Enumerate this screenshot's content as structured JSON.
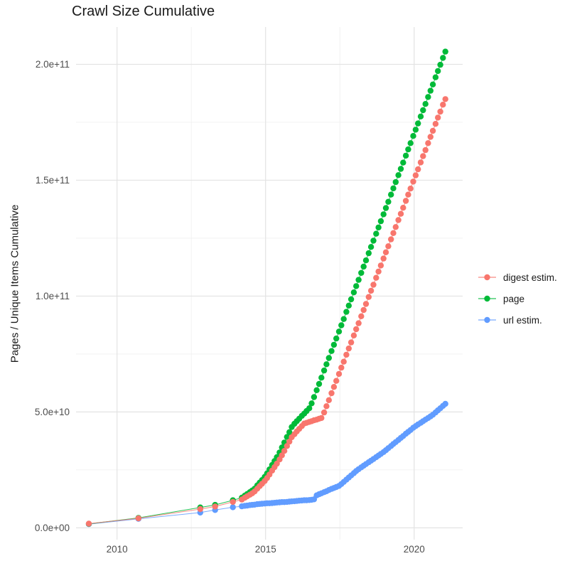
{
  "title": "Crawl Size Cumulative",
  "axes": {
    "y_label": "Pages / Unique Items Cumulative",
    "x_ticks": [
      {
        "label": "2010",
        "value": 2010
      },
      {
        "label": "2015",
        "value": 2015
      },
      {
        "label": "2020",
        "value": 2020
      }
    ],
    "y_ticks": [
      {
        "label": "0.0e+00",
        "value": 0
      },
      {
        "label": "5.0e+10",
        "value": 50
      },
      {
        "label": "1.0e+11",
        "value": 100
      },
      {
        "label": "1.5e+11",
        "value": 150
      },
      {
        "label": "2.0e+11",
        "value": 200
      }
    ],
    "x_minor": [
      2012.5,
      2017.5
    ],
    "y_minor": [
      25,
      75,
      125,
      175
    ]
  },
  "style": {
    "background": "#FFFFFF",
    "grid_major_color": "#E3E3E3",
    "grid_minor_color": "#EFEFEF",
    "tick_label_color": "#4D4D4D",
    "text_color": "#1A1A1A"
  },
  "chart_data": {
    "type": "scatter",
    "title": "Crawl Size Cumulative",
    "xlabel": "",
    "ylabel": "Pages / Unique Items Cumulative",
    "x_unit": "year (decimal)",
    "y_unit": "items cumulative, in billions (1e9)",
    "xlim": [
      2008.62,
      2021.68
    ],
    "ylim": [
      -5.1,
      216.1
    ],
    "grid": true,
    "legend_position": "right",
    "markers_with_line": true,
    "x": [
      2009.05,
      2010.72,
      2012.8,
      2013.3,
      2013.9,
      2014.2,
      2014.3,
      2014.38,
      2014.47,
      2014.55,
      2014.63,
      2014.72,
      2014.8,
      2014.88,
      2014.97,
      2015.05,
      2015.13,
      2015.22,
      2015.3,
      2015.38,
      2015.47,
      2015.55,
      2015.63,
      2015.72,
      2015.8,
      2015.88,
      2015.97,
      2016.05,
      2016.13,
      2016.22,
      2016.3,
      2016.38,
      2016.47,
      2016.55,
      2016.63,
      2016.72,
      2016.8,
      2016.88,
      2016.97,
      2017.05,
      2017.13,
      2017.22,
      2017.3,
      2017.38,
      2017.47,
      2017.55,
      2017.63,
      2017.72,
      2017.8,
      2017.88,
      2017.97,
      2018.05,
      2018.13,
      2018.22,
      2018.3,
      2018.38,
      2018.47,
      2018.55,
      2018.63,
      2018.72,
      2018.8,
      2018.88,
      2018.97,
      2019.05,
      2019.13,
      2019.22,
      2019.3,
      2019.38,
      2019.47,
      2019.55,
      2019.63,
      2019.72,
      2019.8,
      2019.88,
      2019.97,
      2020.05,
      2020.13,
      2020.22,
      2020.3,
      2020.38,
      2020.47,
      2020.55,
      2020.63,
      2020.72,
      2020.8,
      2020.88,
      2020.97,
      2021.05
    ],
    "series": [
      {
        "name": "digest estim.",
        "color": "#F8766D",
        "values": [
          1.8,
          4.1,
          8.1,
          9.2,
          11.2,
          12.2,
          13.0,
          13.6,
          14.3,
          14.9,
          15.7,
          16.9,
          18.0,
          19.0,
          20.2,
          21.5,
          23.0,
          24.7,
          26.2,
          27.7,
          29.5,
          31.3,
          33.2,
          35.3,
          37.2,
          39.1,
          40.4,
          41.6,
          42.7,
          43.9,
          45.0,
          45.3,
          45.7,
          46.0,
          46.4,
          46.7,
          47.1,
          47.4,
          49.8,
          52.5,
          55.1,
          58.1,
          60.8,
          63.4,
          66.4,
          69.1,
          71.7,
          74.7,
          77.4,
          80.0,
          83.0,
          85.7,
          88.3,
          91.3,
          94.0,
          96.6,
          99.6,
          102.3,
          104.9,
          107.9,
          110.6,
          113.2,
          116.2,
          118.9,
          121.5,
          124.5,
          127.2,
          129.8,
          132.8,
          135.5,
          138.1,
          141.1,
          143.8,
          146.4,
          149.4,
          152.1,
          154.7,
          157.7,
          160.4,
          163.0,
          166.0,
          168.7,
          171.3,
          174.3,
          177.0,
          179.6,
          182.6,
          185.0
        ]
      },
      {
        "name": "page",
        "color": "#00BA38",
        "values": [
          1.7,
          4.3,
          8.8,
          9.9,
          11.9,
          13.0,
          13.9,
          14.6,
          15.4,
          16.1,
          16.9,
          18.3,
          19.5,
          20.6,
          22.0,
          23.5,
          25.2,
          27.1,
          28.8,
          30.5,
          32.5,
          34.7,
          36.8,
          39.2,
          41.3,
          43.5,
          44.9,
          46.0,
          47.1,
          48.3,
          49.3,
          50.4,
          51.6,
          53.7,
          56.4,
          59.4,
          62.1,
          64.8,
          67.9,
          70.6,
          73.3,
          76.3,
          79.0,
          81.7,
          84.7,
          87.4,
          90.1,
          93.2,
          95.9,
          98.6,
          101.6,
          104.3,
          107.0,
          110.0,
          112.7,
          115.4,
          118.5,
          121.2,
          123.9,
          126.9,
          129.6,
          132.3,
          135.3,
          138.0,
          140.7,
          143.8,
          146.5,
          149.2,
          152.2,
          154.9,
          157.6,
          160.6,
          163.3,
          166.0,
          169.1,
          171.8,
          174.5,
          177.5,
          180.2,
          182.9,
          185.9,
          188.6,
          191.3,
          194.4,
          197.1,
          199.8,
          202.8,
          205.5
        ]
      },
      {
        "name": "url estim.",
        "color": "#619CFF",
        "values": [
          1.6,
          3.9,
          6.6,
          7.7,
          8.9,
          9.3,
          9.5,
          9.6,
          9.8,
          9.9,
          10.0,
          10.2,
          10.3,
          10.4,
          10.5,
          10.6,
          10.6,
          10.7,
          10.8,
          10.9,
          11.0,
          11.1,
          11.1,
          11.2,
          11.3,
          11.4,
          11.5,
          11.6,
          11.7,
          11.8,
          11.9,
          11.9,
          12.0,
          12.1,
          12.3,
          14.0,
          14.5,
          14.9,
          15.4,
          15.8,
          16.3,
          16.8,
          17.2,
          17.6,
          18.1,
          18.9,
          19.8,
          20.8,
          21.7,
          22.6,
          23.6,
          24.5,
          25.3,
          26.1,
          26.8,
          27.5,
          28.3,
          29.0,
          29.7,
          30.5,
          31.2,
          31.9,
          32.7,
          33.5,
          34.4,
          35.3,
          36.2,
          37.0,
          37.9,
          38.8,
          39.6,
          40.6,
          41.4,
          42.2,
          43.2,
          43.9,
          44.6,
          45.3,
          46.0,
          46.7,
          47.4,
          48.1,
          48.8,
          49.8,
          50.7,
          51.6,
          52.6,
          53.5
        ]
      }
    ]
  }
}
